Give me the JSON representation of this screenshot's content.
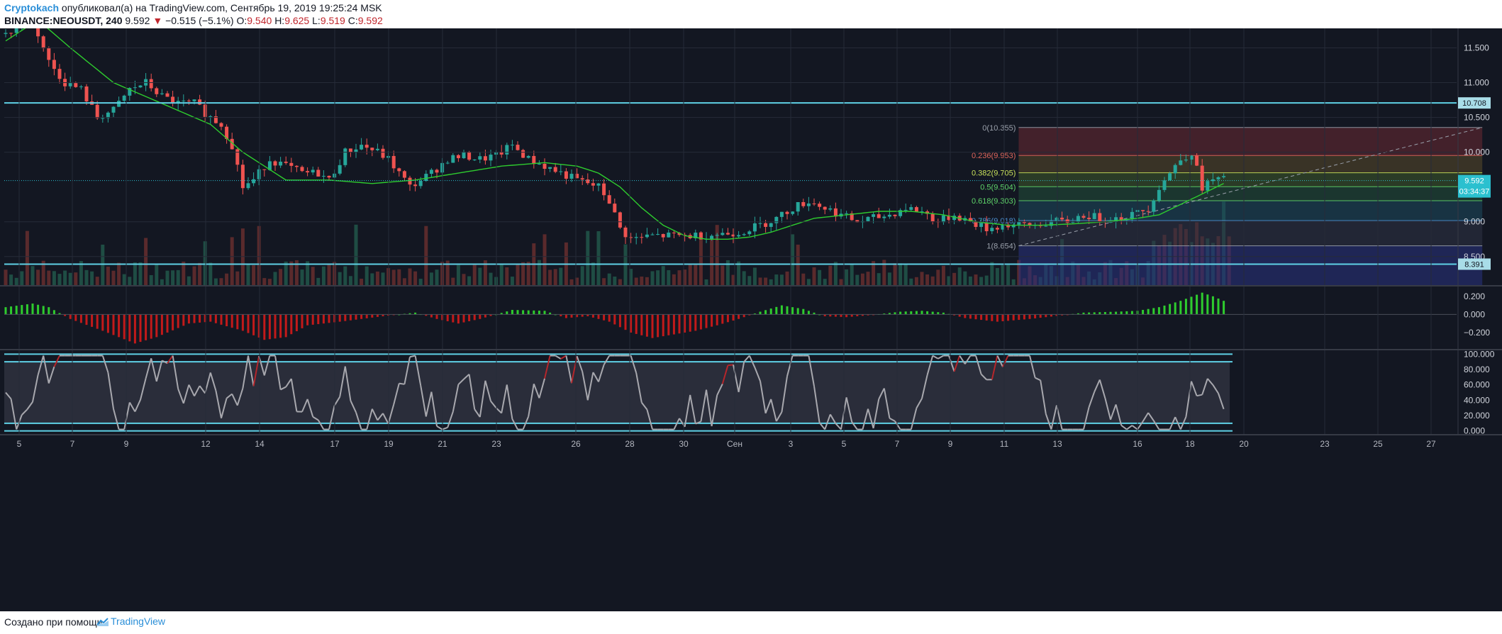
{
  "header": {
    "author": "Cryptokach",
    "published_text": "опубликовал(а) на TradingView.com, Сентябрь 19, 2019 19:25:24 MSK",
    "symbol": "BINANCE:NEOUSDT, 240",
    "last": "9.592",
    "arrow": "▼",
    "change": "−0.515 (−5.1%)",
    "o_label": "O:",
    "o": "9.540",
    "h_label": "H:",
    "h": "9.625",
    "l_label": "L:",
    "l": "9.519",
    "c_label": "C:",
    "c": "9.592"
  },
  "footer": {
    "text": "Создано при помощи",
    "brand": "TradingView"
  },
  "colors": {
    "background": "#131722",
    "grid": "#262b38",
    "up": "#26a69a",
    "down": "#ef5350",
    "ma": "#2ecc2e",
    "level_line": "#5fd1e6",
    "price_tag": "#2bc0cf"
  },
  "chart_data": {
    "type": "candlestick",
    "symbol": "BINANCE:NEOUSDT",
    "interval": "240",
    "x_ticks": [
      "5",
      "7",
      "9",
      "12",
      "14",
      "17",
      "19",
      "21",
      "23",
      "26",
      "28",
      "30",
      "Сен",
      "3",
      "5",
      "7",
      "9",
      "11",
      "13",
      "16",
      "18",
      "20",
      "23",
      "25",
      "27"
    ],
    "y_ticks": [
      "11.500",
      "11.000",
      "10.500",
      "10.000",
      "9.000",
      "8.500"
    ],
    "ylim": [
      8.09,
      11.78
    ],
    "price_path": [
      [
        0,
        11.7
      ],
      [
        5,
        11.9
      ],
      [
        8,
        11.3
      ],
      [
        11,
        11.0
      ],
      [
        14,
        10.9
      ],
      [
        17,
        10.5
      ],
      [
        20,
        10.6
      ],
      [
        23,
        10.9
      ],
      [
        26,
        11.0
      ],
      [
        29,
        10.8
      ],
      [
        32,
        10.7
      ],
      [
        35,
        10.7
      ],
      [
        38,
        10.5
      ],
      [
        40,
        10.4
      ],
      [
        42,
        10.1
      ],
      [
        44,
        9.5
      ],
      [
        46,
        9.6
      ],
      [
        49,
        9.9
      ],
      [
        52,
        9.8
      ],
      [
        55,
        9.7
      ],
      [
        58,
        9.7
      ],
      [
        60,
        9.6
      ],
      [
        63,
        10.0
      ],
      [
        66,
        10.1
      ],
      [
        69,
        10.0
      ],
      [
        71,
        9.9
      ],
      [
        73,
        9.7
      ],
      [
        75,
        9.5
      ],
      [
        77,
        9.6
      ],
      [
        79,
        9.7
      ],
      [
        82,
        9.9
      ],
      [
        85,
        9.95
      ],
      [
        88,
        9.9
      ],
      [
        91,
        9.95
      ],
      [
        94,
        10.1
      ],
      [
        97,
        9.9
      ],
      [
        100,
        9.8
      ],
      [
        103,
        9.7
      ],
      [
        106,
        9.6
      ],
      [
        108,
        9.55
      ],
      [
        110,
        9.5
      ],
      [
        112,
        9.3
      ],
      [
        114,
        8.9
      ],
      [
        116,
        8.75
      ],
      [
        120,
        8.8
      ],
      [
        124,
        8.8
      ],
      [
        128,
        8.8
      ],
      [
        132,
        8.82
      ],
      [
        136,
        8.85
      ],
      [
        140,
        8.95
      ],
      [
        143,
        9.05
      ],
      [
        146,
        9.2
      ],
      [
        149,
        9.3
      ],
      [
        152,
        9.2
      ],
      [
        155,
        9.1
      ],
      [
        158,
        9.0
      ],
      [
        161,
        9.05
      ],
      [
        164,
        9.1
      ],
      [
        167,
        9.2
      ],
      [
        170,
        9.15
      ],
      [
        173,
        9.0
      ],
      [
        176,
        9.1
      ],
      [
        179,
        9.0
      ],
      [
        182,
        8.9
      ],
      [
        185,
        8.95
      ],
      [
        188,
        8.95
      ],
      [
        191,
        8.95
      ],
      [
        194,
        9.0
      ],
      [
        197,
        9.0
      ],
      [
        200,
        9.1
      ],
      [
        203,
        9.05
      ],
      [
        206,
        9.05
      ],
      [
        209,
        9.1
      ],
      [
        212,
        9.2
      ],
      [
        214,
        9.5
      ],
      [
        216,
        9.7
      ],
      [
        218,
        9.9
      ],
      [
        220,
        10.0
      ],
      [
        222,
        9.5
      ],
      [
        224,
        9.6
      ],
      [
        226,
        9.6
      ]
    ],
    "ma_path": [
      [
        0,
        11.6
      ],
      [
        6,
        11.9
      ],
      [
        12,
        11.5
      ],
      [
        20,
        11.0
      ],
      [
        26,
        10.8
      ],
      [
        32,
        10.6
      ],
      [
        38,
        10.4
      ],
      [
        44,
        10.0
      ],
      [
        52,
        9.6
      ],
      [
        60,
        9.6
      ],
      [
        68,
        9.55
      ],
      [
        76,
        9.6
      ],
      [
        84,
        9.7
      ],
      [
        92,
        9.8
      ],
      [
        100,
        9.85
      ],
      [
        106,
        9.8
      ],
      [
        110,
        9.7
      ],
      [
        114,
        9.5
      ],
      [
        118,
        9.2
      ],
      [
        122,
        8.95
      ],
      [
        126,
        8.8
      ],
      [
        130,
        8.75
      ],
      [
        134,
        8.75
      ],
      [
        138,
        8.78
      ],
      [
        142,
        8.85
      ],
      [
        146,
        8.95
      ],
      [
        150,
        9.05
      ],
      [
        156,
        9.1
      ],
      [
        162,
        9.15
      ],
      [
        168,
        9.15
      ],
      [
        174,
        9.1
      ],
      [
        180,
        9.0
      ],
      [
        186,
        8.95
      ],
      [
        192,
        8.95
      ],
      [
        198,
        8.97
      ],
      [
        204,
        9.0
      ],
      [
        210,
        9.05
      ],
      [
        214,
        9.1
      ],
      [
        218,
        9.25
      ],
      [
        222,
        9.4
      ],
      [
        226,
        9.55
      ]
    ],
    "horizontal_levels": [
      {
        "price": 10.708,
        "label": "10.708"
      },
      {
        "price": 8.391,
        "label": "8.391"
      }
    ],
    "last_price": {
      "price": 9.592,
      "label": "9.592",
      "countdown": "03:34:37"
    },
    "fibonacci": {
      "from_index": 159,
      "to_index": 247,
      "levels": [
        {
          "ratio": 0,
          "price": 10.355,
          "label": "0(10.355)",
          "band": "#6b2a33",
          "text_color": "#9aa0ab"
        },
        {
          "ratio": 0.236,
          "price": 9.953,
          "label": "0.236(9.953)",
          "band": "#5a4a2a",
          "text_color": "#e0665b"
        },
        {
          "ratio": 0.382,
          "price": 9.705,
          "label": "0.382(9.705)",
          "band": "#3e5a2a",
          "text_color": "#c8e05a"
        },
        {
          "ratio": 0.5,
          "price": 9.504,
          "label": "0.5(9.504)",
          "band": "#23513a",
          "text_color": "#5fd46a"
        },
        {
          "ratio": 0.618,
          "price": 9.303,
          "label": "0.618(9.303)",
          "band": "#1e4a5e",
          "text_color": "#5fd46a"
        },
        {
          "ratio": 0.786,
          "price": 9.018,
          "label": "0.786(9.018)",
          "band": "#2f3346",
          "text_color": "#4c8fd1"
        },
        {
          "ratio": 1,
          "price": 8.654,
          "label": "1(8.654)",
          "band": "#2a2f6a",
          "text_color": "#9aa0ab"
        }
      ]
    },
    "macd": {
      "y_ticks": [
        "0.200",
        "0.000",
        "−0.200"
      ],
      "ylim": [
        -0.38,
        0.3
      ],
      "path": [
        [
          0,
          0.08
        ],
        [
          5,
          0.12
        ],
        [
          8,
          0.08
        ],
        [
          12,
          -0.05
        ],
        [
          18,
          -0.18
        ],
        [
          24,
          -0.32
        ],
        [
          28,
          -0.25
        ],
        [
          34,
          -0.1
        ],
        [
          38,
          -0.08
        ],
        [
          44,
          -0.18
        ],
        [
          48,
          -0.28
        ],
        [
          52,
          -0.25
        ],
        [
          56,
          -0.12
        ],
        [
          62,
          -0.08
        ],
        [
          70,
          -0.02
        ],
        [
          76,
          0.02
        ],
        [
          80,
          -0.05
        ],
        [
          84,
          -0.1
        ],
        [
          88,
          -0.05
        ],
        [
          94,
          0.05
        ],
        [
          100,
          0.04
        ],
        [
          104,
          -0.04
        ],
        [
          108,
          -0.02
        ],
        [
          112,
          -0.08
        ],
        [
          116,
          -0.2
        ],
        [
          120,
          -0.26
        ],
        [
          124,
          -0.22
        ],
        [
          128,
          -0.18
        ],
        [
          132,
          -0.12
        ],
        [
          136,
          -0.05
        ],
        [
          140,
          0.03
        ],
        [
          144,
          0.1
        ],
        [
          148,
          0.06
        ],
        [
          152,
          -0.02
        ],
        [
          156,
          -0.03
        ],
        [
          160,
          -0.01
        ],
        [
          166,
          0.03
        ],
        [
          170,
          0.04
        ],
        [
          174,
          0.02
        ],
        [
          178,
          -0.04
        ],
        [
          184,
          -0.08
        ],
        [
          190,
          -0.05
        ],
        [
          196,
          -0.01
        ],
        [
          200,
          0.02
        ],
        [
          206,
          0.03
        ],
        [
          210,
          0.04
        ],
        [
          214,
          0.08
        ],
        [
          218,
          0.15
        ],
        [
          222,
          0.24
        ],
        [
          224,
          0.2
        ],
        [
          226,
          0.15
        ]
      ]
    },
    "stoch_rsi": {
      "y_ticks": [
        "100.000",
        "80.000",
        "60.000",
        "40.000",
        "20.000",
        "0.000"
      ],
      "ylim": [
        -4,
        104
      ],
      "bands": [
        100,
        90,
        10,
        0
      ]
    }
  }
}
